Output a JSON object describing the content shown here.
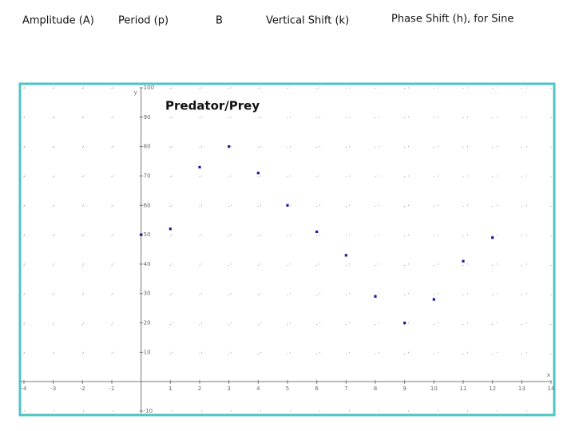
{
  "headers": [
    "Amplitude (A)",
    "Period (p)",
    "B",
    "Vertical Shift (k)",
    "Phase Shift (h), for Sine"
  ],
  "chart_data": {
    "type": "scatter",
    "title": "Predator/Prey",
    "x_label": "x",
    "y_label": "y",
    "x": [
      0,
      1,
      2,
      3,
      4,
      5,
      6,
      7,
      8,
      9,
      10,
      11,
      12
    ],
    "values": [
      50,
      52,
      73,
      80,
      71,
      60,
      51,
      43,
      29,
      20,
      28,
      41,
      49
    ],
    "color": "#1a1aa0",
    "xlim": [
      -4,
      14
    ],
    "ylim": [
      -10,
      100
    ],
    "xticks": [
      -4,
      -3,
      -2,
      -1,
      1,
      2,
      3,
      4,
      5,
      6,
      7,
      8,
      9,
      10,
      11,
      12,
      13,
      14
    ],
    "yticks": [
      -10,
      10,
      20,
      30,
      40,
      50,
      60,
      70,
      80,
      90,
      100
    ],
    "grid": true
  }
}
